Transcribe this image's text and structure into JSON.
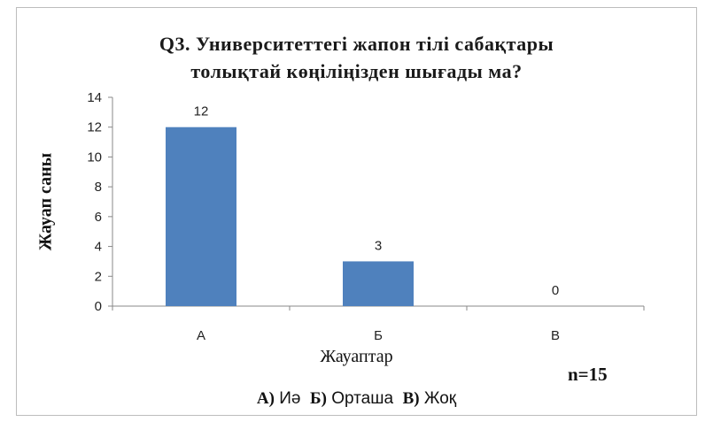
{
  "chart_data": {
    "type": "bar",
    "title_line1": "Q3. Университеттегі жапон тілі сабақтары",
    "title_line2": "толықтай көңіліңізден шығады ма?",
    "ylabel": "Жауап саны",
    "xlabel": "Жауаптар",
    "categories": [
      "А",
      "Б",
      "В"
    ],
    "values": [
      12,
      3,
      0
    ],
    "ylim": [
      0,
      14
    ],
    "yticks": [
      0,
      2,
      4,
      6,
      8,
      10,
      12,
      14
    ],
    "legend_items": [
      {
        "key": "А)",
        "text": "Иә"
      },
      {
        "key": "Б)",
        "text": "Орташа"
      },
      {
        "key": "В)",
        "text": "Жоқ"
      }
    ],
    "note": "n=15",
    "bar_color": "#4f81bd",
    "grid": false
  }
}
